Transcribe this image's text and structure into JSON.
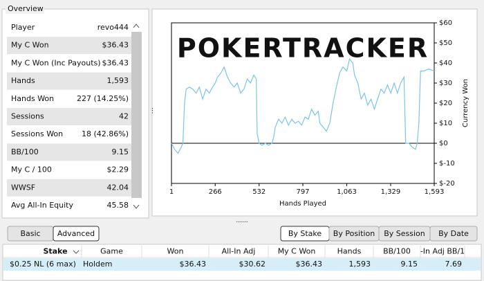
{
  "overview": {
    "title": "Overview",
    "rows": [
      {
        "label": "Player",
        "value": "revo444"
      },
      {
        "label": "My C Won",
        "value": "$36.43",
        "color": "#2a9a2a"
      },
      {
        "label": "My C Won (Inc Payouts)",
        "value": "$36.43",
        "color": "#2a9a2a"
      },
      {
        "label": "Hands",
        "value": "1,593"
      },
      {
        "label": "Hands Won",
        "value": "227 (14.25%)"
      },
      {
        "label": "Sessions",
        "value": "42"
      },
      {
        "label": "Sessions Won",
        "value": "18 (42.86%)"
      },
      {
        "label": "BB/100",
        "value": "9.15",
        "color": "#2a9a2a"
      },
      {
        "label": "My C / 100",
        "value": "$2.29",
        "color": "#2a9a2a"
      },
      {
        "label": "WWSF",
        "value": "42.04"
      },
      {
        "label": "Avg All-In Equity",
        "value": "45.58"
      }
    ]
  },
  "chart": {
    "type": "line",
    "watermark": "POKERTRACKER",
    "xlabel": "Hands Played",
    "ylabel": "Currency Won",
    "color": "#7cc4e8",
    "xlim": [
      1,
      1593
    ],
    "ylim": [
      -20,
      60
    ],
    "xticks": [
      1,
      266,
      532,
      797,
      {
        "value": 1063,
        "label": "1,063"
      },
      {
        "value": 1329,
        "label": "1,329"
      },
      {
        "value": 1593,
        "label": "1,593"
      }
    ],
    "yticks": [
      {
        "value": -20,
        "label": "$-20"
      },
      {
        "value": -10,
        "label": "$-10"
      },
      {
        "value": 0,
        "label": "$0"
      },
      {
        "value": 10,
        "label": "$10"
      },
      {
        "value": 20,
        "label": "$20"
      },
      {
        "value": 30,
        "label": "$30"
      },
      {
        "value": 40,
        "label": "$40"
      },
      {
        "value": 50,
        "label": "$50"
      },
      {
        "value": 60,
        "label": "$60"
      }
    ],
    "x": [
      1,
      20,
      40,
      60,
      70,
      80,
      90,
      110,
      130,
      150,
      170,
      190,
      210,
      230,
      250,
      266,
      280,
      300,
      320,
      340,
      360,
      380,
      400,
      420,
      440,
      460,
      480,
      500,
      515,
      520,
      532,
      550,
      570,
      590,
      610,
      620,
      630,
      650,
      670,
      690,
      710,
      730,
      750,
      770,
      790,
      810,
      830,
      850,
      870,
      890,
      900,
      920,
      940,
      960,
      980,
      1000,
      1020,
      1040,
      1063,
      1080,
      1100,
      1110,
      1130,
      1150,
      1170,
      1190,
      1210,
      1230,
      1250,
      1270,
      1290,
      1310,
      1330,
      1350,
      1370,
      1390,
      1410,
      1420,
      1440,
      1460,
      1480,
      1490,
      1500,
      1510,
      1530,
      1560,
      1593
    ],
    "values": [
      0,
      -3,
      -5,
      -2,
      0,
      20,
      27,
      28,
      27,
      25,
      28,
      22,
      27,
      25,
      28,
      30,
      33,
      35,
      38,
      33,
      30,
      28,
      30,
      25,
      27,
      32,
      30,
      34,
      32,
      5,
      0,
      -1,
      0,
      -1,
      0,
      3,
      8,
      12,
      10,
      13,
      9,
      12,
      10,
      11,
      9,
      13,
      12,
      17,
      14,
      16,
      10,
      8,
      6,
      10,
      20,
      28,
      35,
      38,
      36,
      42,
      40,
      34,
      30,
      22,
      25,
      19,
      22,
      17,
      22,
      27,
      25,
      29,
      25,
      30,
      25,
      30,
      33,
      0,
      0,
      -2,
      -3,
      0,
      10,
      36,
      36,
      37,
      36
    ]
  },
  "buttons_left": [
    "Basic",
    "Advanced"
  ],
  "buttons_right": [
    "By Stake",
    "By Position",
    "By Session",
    "By Date"
  ],
  "table": {
    "columns": [
      "Stake",
      "Game",
      "Won",
      "All-In Adj",
      "My C Won",
      "Hands",
      "BB/100",
      "-In Adj BB/1"
    ],
    "rows": [
      [
        "$0.25 NL (6 max)",
        "Holdem",
        "$36.43",
        "$30.62",
        "$36.43",
        "1,593",
        "9.15",
        "7.69"
      ]
    ],
    "value_color": "#2a9a2a"
  }
}
